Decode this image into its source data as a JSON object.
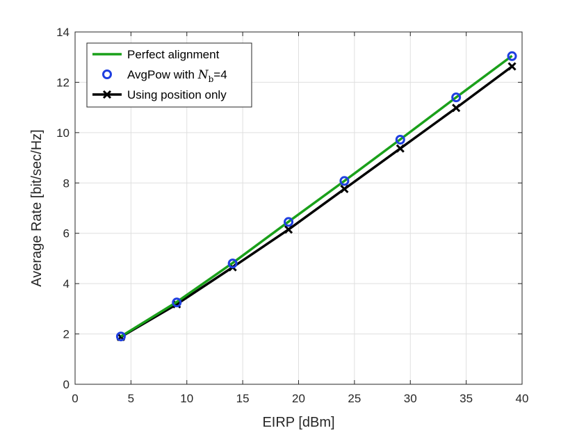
{
  "chart_data": {
    "type": "line",
    "xlabel": "EIRP [dBm]",
    "ylabel": "Average Rate [bit/sec/Hz]",
    "xlim": [
      0,
      40
    ],
    "ylim": [
      0,
      14
    ],
    "xticks": [
      "0",
      "5",
      "10",
      "15",
      "20",
      "25",
      "30",
      "35",
      "40"
    ],
    "yticks": [
      "0",
      "2",
      "4",
      "6",
      "8",
      "10",
      "12",
      "14"
    ],
    "grid": true,
    "legend_position": "top-left",
    "x": [
      4.1,
      9.1,
      14.1,
      19.1,
      24.1,
      29.1,
      34.1,
      39.1
    ],
    "series": [
      {
        "name": "Perfect alignment",
        "style": "line",
        "color": "#1aa01a",
        "values": [
          1.9,
          3.27,
          4.82,
          6.46,
          8.08,
          9.73,
          11.4,
          13.05
        ]
      },
      {
        "name": "AvgPow with Nb=4",
        "name_parts": {
          "prefix": "AvgPow with ",
          "symbol": "N",
          "subscript": "b",
          "suffix": "=4"
        },
        "style": "markers-circle",
        "color": "#1f3fe0",
        "values": [
          1.9,
          3.25,
          4.8,
          6.45,
          8.08,
          9.72,
          11.4,
          13.04
        ]
      },
      {
        "name": "Using position only",
        "style": "line-x",
        "color": "#000000",
        "values": [
          1.88,
          3.18,
          4.65,
          6.15,
          7.76,
          9.37,
          10.98,
          12.63
        ]
      }
    ]
  }
}
